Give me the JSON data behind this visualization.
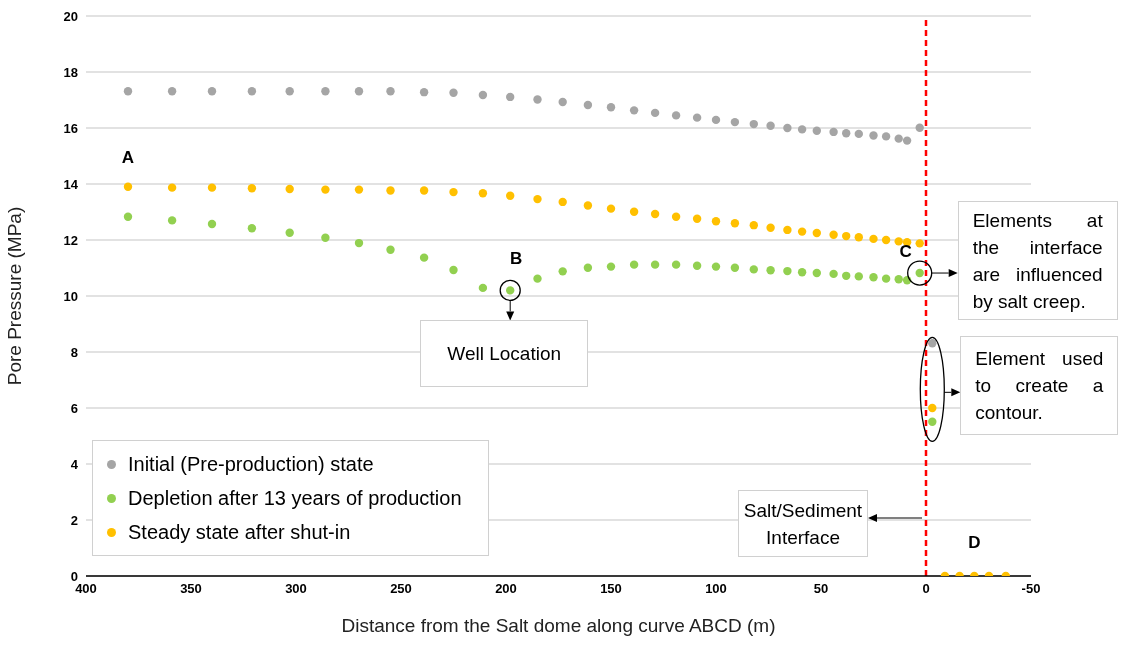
{
  "chart_data": {
    "type": "scatter",
    "xlabel": "Distance from the Salt dome along curve ABCD (m)",
    "ylabel": "Pore Pressure (MPa)",
    "xlim": [
      400,
      -50
    ],
    "xticks": [
      400,
      350,
      300,
      250,
      200,
      150,
      100,
      50,
      0,
      -50
    ],
    "ylim": [
      0,
      20
    ],
    "yticks": [
      0,
      2,
      4,
      6,
      8,
      10,
      12,
      14,
      16,
      18,
      20
    ],
    "grid": "y",
    "legend": "bottom left",
    "marker": "circle",
    "series": [
      {
        "name": "Initial (Pre-production) state",
        "color": "#a5a5a5",
        "x": [
          380,
          359,
          340,
          321,
          303,
          286,
          270,
          255,
          239,
          225,
          211,
          198,
          185,
          173,
          161,
          150,
          139,
          129,
          119,
          109,
          100,
          91,
          82,
          74,
          66,
          59,
          52,
          44,
          38,
          32,
          25,
          19,
          13,
          9,
          3,
          -3
        ],
        "values": [
          17.31,
          17.31,
          17.31,
          17.31,
          17.31,
          17.31,
          17.31,
          17.31,
          17.28,
          17.26,
          17.18,
          17.11,
          17.02,
          16.93,
          16.82,
          16.74,
          16.63,
          16.54,
          16.45,
          16.37,
          16.29,
          16.21,
          16.14,
          16.08,
          16.0,
          15.95,
          15.9,
          15.86,
          15.81,
          15.79,
          15.73,
          15.7,
          15.62,
          15.55,
          16.01,
          8.31
        ]
      },
      {
        "name": "Depletion after 13 years of production",
        "color": "#92d050",
        "x": [
          380,
          359,
          340,
          321,
          303,
          286,
          270,
          255,
          239,
          225,
          211,
          198,
          185,
          173,
          161,
          150,
          139,
          129,
          119,
          109,
          100,
          91,
          82,
          74,
          66,
          59,
          52,
          44,
          38,
          32,
          25,
          19,
          13,
          9,
          3,
          -3
        ],
        "values": [
          12.83,
          12.7,
          12.57,
          12.42,
          12.26,
          12.08,
          11.89,
          11.65,
          11.37,
          10.93,
          10.29,
          10.2,
          10.62,
          10.88,
          11.01,
          11.05,
          11.12,
          11.12,
          11.12,
          11.08,
          11.05,
          11.01,
          10.95,
          10.92,
          10.89,
          10.85,
          10.82,
          10.79,
          10.72,
          10.7,
          10.67,
          10.62,
          10.6,
          10.56,
          10.82,
          5.51
        ]
      },
      {
        "name": "Steady state after shut-in",
        "color": "#ffc000",
        "x": [
          380,
          359,
          340,
          321,
          303,
          286,
          270,
          255,
          239,
          225,
          211,
          198,
          185,
          173,
          161,
          150,
          139,
          129,
          119,
          109,
          100,
          91,
          82,
          74,
          66,
          59,
          52,
          44,
          38,
          32,
          25,
          19,
          13,
          9,
          3,
          -3,
          -9,
          -16,
          -23,
          -30,
          -38
        ],
        "values": [
          13.9,
          13.87,
          13.87,
          13.85,
          13.82,
          13.8,
          13.8,
          13.77,
          13.77,
          13.71,
          13.67,
          13.58,
          13.46,
          13.36,
          13.23,
          13.12,
          13.01,
          12.93,
          12.83,
          12.76,
          12.67,
          12.6,
          12.53,
          12.44,
          12.36,
          12.3,
          12.25,
          12.19,
          12.14,
          12.1,
          12.04,
          12.0,
          11.95,
          11.92,
          11.88,
          6.0,
          0,
          0,
          0,
          0,
          0
        ]
      }
    ],
    "ref_lines": [
      {
        "axis": "x",
        "value": 0,
        "label": null,
        "color": "#ff0000",
        "line_style": "dashed"
      }
    ],
    "annotations": [
      {
        "text": "A",
        "x": 380,
        "y": 13.9
      },
      {
        "text": "B",
        "x": 198,
        "y": 10.2
      },
      {
        "text": "C",
        "x": 3,
        "y": 10.82
      },
      {
        "text": "D",
        "x": -23,
        "y": 0
      },
      {
        "text": "Well Location",
        "x": 198,
        "y": 10.2
      },
      {
        "text": "Elements at the interface are influenced by salt creep.",
        "x": 3,
        "y": 10.82
      },
      {
        "text": "Element used to create a contour.",
        "x": -3,
        "y": 8.31
      },
      {
        "text": "Salt/Sediment Interface",
        "x": 0,
        "y": 2
      }
    ]
  }
}
